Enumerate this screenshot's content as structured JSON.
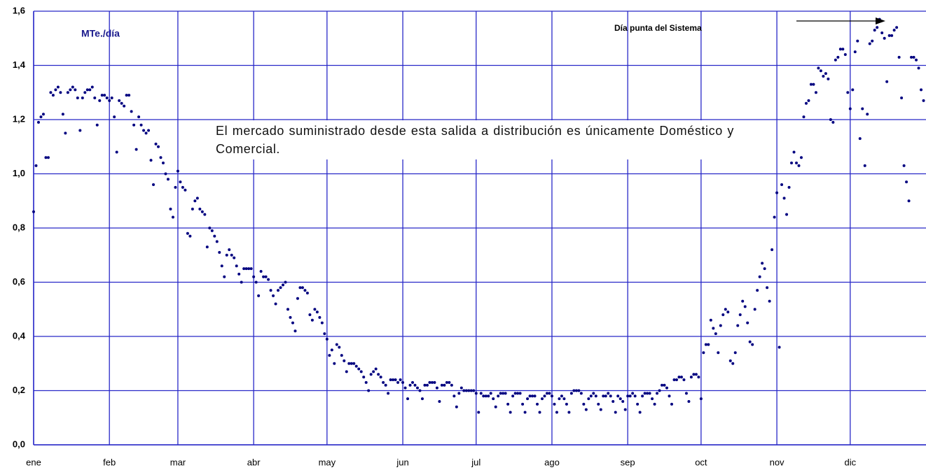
{
  "chart_data": {
    "type": "line",
    "unit_label": "MTe./día",
    "annotation": "Día punta del Sistema",
    "note": "El mercado suministrado desde esta salida a distribución es únicamente Doméstico y Comercial.",
    "color": "#000080",
    "grid_color": "#2828c8",
    "grid": true,
    "xlim": [
      0,
      365
    ],
    "xticks": [
      {
        "value": 0,
        "label": "ene"
      },
      {
        "value": 31,
        "label": "feb"
      },
      {
        "value": 59,
        "label": "mar"
      },
      {
        "value": 90,
        "label": "abr"
      },
      {
        "value": 120,
        "label": "may"
      },
      {
        "value": 151,
        "label": "jun"
      },
      {
        "value": 181,
        "label": "jul"
      },
      {
        "value": 212,
        "label": "ago"
      },
      {
        "value": 243,
        "label": "sep"
      },
      {
        "value": 273,
        "label": "oct"
      },
      {
        "value": 304,
        "label": "nov"
      },
      {
        "value": 334,
        "label": "dic"
      }
    ],
    "ylim": [
      0,
      1.6
    ],
    "yticks": [
      {
        "value": 0,
        "label": "0,0"
      },
      {
        "value": 0.2,
        "label": "0,2"
      },
      {
        "value": 0.4,
        "label": "0,4"
      },
      {
        "value": 0.6,
        "label": "0,6"
      },
      {
        "value": 0.8,
        "label": "0,8"
      },
      {
        "value": 1.0,
        "label": "1,0"
      },
      {
        "value": 1.2,
        "label": "1,2"
      },
      {
        "value": 1.4,
        "label": "1,4"
      },
      {
        "value": 1.6,
        "label": "1,6"
      }
    ],
    "x": [
      0,
      1,
      2,
      3,
      4,
      5,
      6,
      7,
      8,
      9,
      10,
      11,
      12,
      13,
      14,
      15,
      16,
      17,
      18,
      19,
      20,
      21,
      22,
      23,
      24,
      25,
      26,
      27,
      28,
      29,
      30,
      31,
      32,
      33,
      34,
      35,
      36,
      37,
      38,
      39,
      40,
      41,
      42,
      43,
      44,
      45,
      46,
      47,
      48,
      49,
      50,
      51,
      52,
      53,
      54,
      55,
      56,
      57,
      58,
      59,
      60,
      61,
      62,
      63,
      64,
      65,
      66,
      67,
      68,
      69,
      70,
      71,
      72,
      73,
      74,
      75,
      76,
      77,
      78,
      79,
      80,
      81,
      82,
      83,
      84,
      85,
      86,
      87,
      88,
      89,
      90,
      91,
      92,
      93,
      94,
      95,
      96,
      97,
      98,
      99,
      100,
      101,
      102,
      103,
      104,
      105,
      106,
      107,
      108,
      109,
      110,
      111,
      112,
      113,
      114,
      115,
      116,
      117,
      118,
      119,
      120,
      121,
      122,
      123,
      124,
      125,
      126,
      127,
      128,
      129,
      130,
      131,
      132,
      133,
      134,
      135,
      136,
      137,
      138,
      139,
      140,
      141,
      142,
      143,
      144,
      145,
      146,
      147,
      148,
      149,
      150,
      151,
      152,
      153,
      154,
      155,
      156,
      157,
      158,
      159,
      160,
      161,
      162,
      163,
      164,
      165,
      166,
      167,
      168,
      169,
      170,
      171,
      172,
      173,
      174,
      175,
      176,
      177,
      178,
      179,
      180,
      181,
      182,
      183,
      184,
      185,
      186,
      187,
      188,
      189,
      190,
      191,
      192,
      193,
      194,
      195,
      196,
      197,
      198,
      199,
      200,
      201,
      202,
      203,
      204,
      205,
      206,
      207,
      208,
      209,
      210,
      211,
      212,
      213,
      214,
      215,
      216,
      217,
      218,
      219,
      220,
      221,
      222,
      223,
      224,
      225,
      226,
      227,
      228,
      229,
      230,
      231,
      232,
      233,
      234,
      235,
      236,
      237,
      238,
      239,
      240,
      241,
      242,
      243,
      244,
      245,
      246,
      247,
      248,
      249,
      250,
      251,
      252,
      253,
      254,
      255,
      256,
      257,
      258,
      259,
      260,
      261,
      262,
      263,
      264,
      265,
      266,
      267,
      268,
      269,
      270,
      271,
      272,
      273,
      274,
      275,
      276,
      277,
      278,
      279,
      280,
      281,
      282,
      283,
      284,
      285,
      286,
      287,
      288,
      289,
      290,
      291,
      292,
      293,
      294,
      295,
      296,
      297,
      298,
      299,
      300,
      301,
      302,
      303,
      304,
      305,
      306,
      307,
      308,
      309,
      310,
      311,
      312,
      313,
      314,
      315,
      316,
      317,
      318,
      319,
      320,
      321,
      322,
      323,
      324,
      325,
      326,
      327,
      328,
      329,
      330,
      331,
      332,
      333,
      334,
      335,
      336,
      337,
      338,
      339,
      340,
      341,
      342,
      343,
      344,
      345,
      346,
      347,
      348,
      349,
      350,
      351,
      352,
      353,
      354,
      355,
      356,
      357,
      358,
      359,
      360,
      361,
      362,
      363,
      364
    ],
    "values": [
      0.86,
      1.03,
      1.19,
      1.21,
      1.22,
      1.06,
      1.06,
      1.3,
      1.29,
      1.31,
      1.32,
      1.3,
      1.22,
      1.15,
      1.3,
      1.31,
      1.32,
      1.31,
      1.28,
      1.16,
      1.28,
      1.3,
      1.31,
      1.31,
      1.32,
      1.28,
      1.18,
      1.27,
      1.29,
      1.29,
      1.28,
      1.27,
      1.28,
      1.21,
      1.08,
      1.27,
      1.26,
      1.25,
      1.29,
      1.29,
      1.23,
      1.18,
      1.09,
      1.21,
      1.18,
      1.16,
      1.15,
      1.16,
      1.05,
      0.96,
      1.11,
      1.1,
      1.06,
      1.04,
      1.0,
      0.98,
      0.87,
      0.84,
      0.95,
      1.01,
      0.97,
      0.95,
      0.94,
      0.78,
      0.77,
      0.87,
      0.9,
      0.91,
      0.87,
      0.86,
      0.85,
      0.73,
      0.8,
      0.79,
      0.77,
      0.75,
      0.71,
      0.66,
      0.62,
      0.7,
      0.72,
      0.7,
      0.69,
      0.66,
      0.63,
      0.6,
      0.65,
      0.65,
      0.65,
      0.65,
      0.62,
      0.6,
      0.55,
      0.64,
      0.62,
      0.62,
      0.61,
      0.57,
      0.55,
      0.52,
      0.57,
      0.58,
      0.59,
      0.6,
      0.5,
      0.47,
      0.45,
      0.42,
      0.54,
      0.58,
      0.58,
      0.57,
      0.56,
      0.48,
      0.46,
      0.5,
      0.49,
      0.47,
      0.45,
      0.41,
      0.39,
      0.33,
      0.35,
      0.3,
      0.37,
      0.36,
      0.33,
      0.31,
      0.27,
      0.3,
      0.3,
      0.3,
      0.29,
      0.28,
      0.27,
      0.25,
      0.23,
      0.2,
      0.26,
      0.27,
      0.28,
      0.26,
      0.25,
      0.23,
      0.22,
      0.19,
      0.24,
      0.24,
      0.24,
      0.23,
      0.24,
      0.23,
      0.21,
      0.17,
      0.22,
      0.23,
      0.22,
      0.21,
      0.2,
      0.17,
      0.22,
      0.22,
      0.23,
      0.23,
      0.23,
      0.21,
      0.16,
      0.22,
      0.22,
      0.23,
      0.23,
      0.22,
      0.18,
      0.14,
      0.19,
      0.21,
      0.2,
      0.2,
      0.2,
      0.2,
      0.2,
      0.19,
      0.12,
      0.19,
      0.18,
      0.18,
      0.18,
      0.19,
      0.17,
      0.14,
      0.18,
      0.19,
      0.19,
      0.19,
      0.15,
      0.12,
      0.18,
      0.19,
      0.19,
      0.19,
      0.15,
      0.12,
      0.17,
      0.18,
      0.18,
      0.18,
      0.15,
      0.12,
      0.17,
      0.18,
      0.19,
      0.19,
      0.18,
      0.15,
      0.12,
      0.17,
      0.18,
      0.17,
      0.15,
      0.12,
      0.19,
      0.2,
      0.2,
      0.2,
      0.19,
      0.15,
      0.13,
      0.17,
      0.18,
      0.19,
      0.18,
      0.15,
      0.13,
      0.18,
      0.18,
      0.19,
      0.18,
      0.16,
      0.12,
      0.18,
      0.17,
      0.16,
      0.13,
      0.18,
      0.18,
      0.19,
      0.18,
      0.15,
      0.12,
      0.18,
      0.19,
      0.19,
      0.19,
      0.17,
      0.15,
      0.19,
      0.2,
      0.22,
      0.22,
      0.21,
      0.18,
      0.15,
      0.24,
      0.24,
      0.25,
      0.25,
      0.24,
      0.19,
      0.16,
      0.25,
      0.26,
      0.26,
      0.25,
      0.17,
      0.34,
      0.37,
      0.37,
      0.46,
      0.43,
      0.41,
      0.34,
      0.44,
      0.48,
      0.5,
      0.49,
      0.31,
      0.3,
      0.34,
      0.44,
      0.48,
      0.53,
      0.51,
      0.45,
      0.38,
      0.37,
      0.5,
      0.57,
      0.62,
      0.67,
      0.65,
      0.58,
      0.53,
      0.72,
      0.84,
      0.93,
      0.36,
      0.96,
      0.91,
      0.85,
      0.95,
      1.04,
      1.08,
      1.04,
      1.03,
      1.06,
      1.21,
      1.26,
      1.27,
      1.33,
      1.33,
      1.3,
      1.39,
      1.38,
      1.36,
      1.37,
      1.35,
      1.2,
      1.19,
      1.42,
      1.43,
      1.46,
      1.46,
      1.44,
      1.3,
      1.24,
      1.31,
      1.45,
      1.49,
      1.13,
      1.24,
      1.03,
      1.22,
      1.48,
      1.49,
      1.53,
      1.54,
      1.57,
      1.52,
      1.5,
      1.34,
      1.51,
      1.51,
      1.53,
      1.54,
      1.43,
      1.28,
      1.03,
      0.97,
      0.9,
      1.43,
      1.43,
      1.42,
      1.39,
      1.31,
      1.27
    ]
  }
}
